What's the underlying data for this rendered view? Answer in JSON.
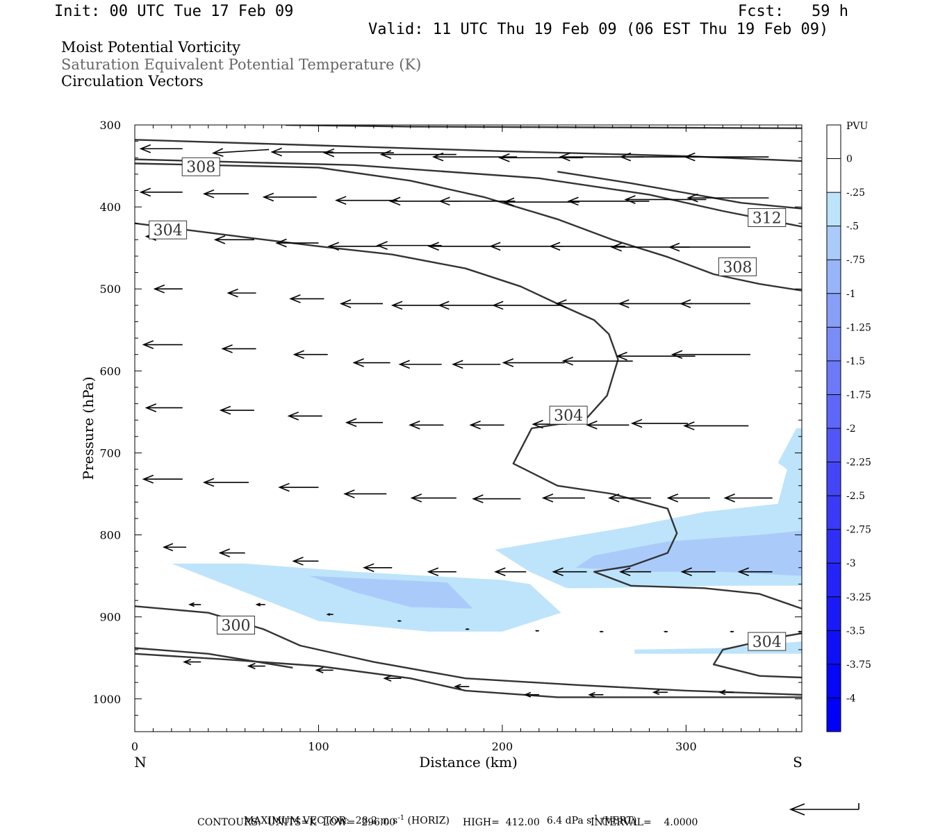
{
  "header": {
    "init": "Init: 00 UTC Tue 17 Feb 09",
    "fcst": "Fcst:   59 h",
    "valid": "Valid: 11 UTC Thu 19 Feb 09 (06 EST Thu 19 Feb 09)"
  },
  "titles": {
    "line1": "Moist Potential Vorticity",
    "line2": "Saturation Equivalent Potential Temperature (K)",
    "line3": "Circulation Vectors"
  },
  "colors": {
    "title2": "#666666",
    "contour": "#333333",
    "shade_0_25": "#bde4fb",
    "shade_0_5": "#aacbfa"
  },
  "footer": {
    "max_vector_label": "MAXIMUM VECTOR:",
    "max_horiz": "28.2 m s",
    "horiz_exp": "-1",
    "horiz_tag": "(HORIZ)",
    "max_vert": "6.4 dPa s",
    "vert_exp": "-1",
    "vert_tag": "(VERT)",
    "contours": "CONTOURS:  UNITS=K  LOW=  296.00",
    "high": "HIGH=  412.00",
    "interval": "INTERVAL=    4.0000"
  },
  "chart_data": {
    "type": "contour",
    "xlabel": "Distance (km)",
    "ylabel": "Pressure (hPa)",
    "x_start_label": "N",
    "x_end_label": "S",
    "xlim": [
      0,
      363
    ],
    "ylim": [
      300,
      1040
    ],
    "x_ticks": [
      "0",
      "100",
      "200",
      "300"
    ],
    "x_tick_values": [
      0,
      100,
      200,
      300
    ],
    "y_ticks": [
      "300",
      "400",
      "500",
      "600",
      "700",
      "800",
      "900",
      "1000"
    ],
    "y_tick_values": [
      300,
      400,
      500,
      600,
      700,
      800,
      900,
      1000
    ],
    "colorbar": {
      "unit": "PVU",
      "labels": [
        "0",
        "-.25",
        "-.5",
        "-.75",
        "-1",
        "-1.25",
        "-1.5",
        "-1.75",
        "-2",
        "-2.25",
        "-2.5",
        "-2.75",
        "-3",
        "-3.25",
        "-3.5",
        "-3.75",
        "-4"
      ],
      "values": [
        0,
        -0.25,
        -0.5,
        -0.75,
        -1,
        -1.25,
        -1.5,
        -1.75,
        -2,
        -2.25,
        -2.5,
        -2.75,
        -3,
        -3.25,
        -3.5,
        -3.75,
        -4
      ],
      "colors": [
        "#ffffff",
        "#ffffff",
        "#bde4fb",
        "#aacbfa",
        "#98b5f9",
        "#889ff8",
        "#7a8cf8",
        "#6c79f8",
        "#5f67f8",
        "#5256f8",
        "#4545f8",
        "#3a3af8",
        "#2f2ff8",
        "#2424f8",
        "#1a1af8",
        "#1010f8",
        "#0606f8",
        "#0000f8"
      ]
    },
    "contour_labels": [
      {
        "text": "308",
        "x": 36,
        "y": 351
      },
      {
        "text": "304",
        "x": 18,
        "y": 428
      },
      {
        "text": "312",
        "x": 344,
        "y": 413
      },
      {
        "text": "308",
        "x": 328,
        "y": 473
      },
      {
        "text": "304",
        "x": 236,
        "y": 654
      },
      {
        "text": "300",
        "x": 55,
        "y": 910
      },
      {
        "text": "304",
        "x": 344,
        "y": 930
      }
    ],
    "contours": [
      {
        "level": 312,
        "points": [
          [
            82,
            300
          ],
          [
            150,
            302
          ],
          [
            250,
            303
          ],
          [
            363,
            304
          ]
        ]
      },
      {
        "level": 312,
        "points": [
          [
            0,
            318
          ],
          [
            100,
            325
          ],
          [
            200,
            332
          ],
          [
            300,
            338
          ],
          [
            363,
            344
          ]
        ]
      },
      {
        "level": 312,
        "points": [
          [
            0,
            342
          ],
          [
            120,
            349
          ],
          [
            220,
            365
          ],
          [
            280,
            385
          ],
          [
            320,
            405
          ],
          [
            363,
            424
          ]
        ]
      },
      {
        "level": 308,
        "points": [
          [
            0,
            347
          ],
          [
            100,
            352
          ],
          [
            150,
            368
          ],
          [
            190,
            388
          ],
          [
            230,
            415
          ],
          [
            260,
            440
          ],
          [
            290,
            461
          ],
          [
            315,
            482
          ],
          [
            340,
            494
          ],
          [
            363,
            502
          ]
        ]
      },
      {
        "level": 308,
        "points": [
          [
            230,
            357
          ],
          [
            270,
            371
          ],
          [
            300,
            383
          ],
          [
            330,
            395
          ],
          [
            363,
            402
          ]
        ]
      },
      {
        "level": 304,
        "points": [
          [
            0,
            420
          ],
          [
            60,
            437
          ],
          [
            100,
            448
          ],
          [
            140,
            458
          ],
          [
            180,
            475
          ],
          [
            210,
            497
          ],
          [
            230,
            518
          ],
          [
            250,
            538
          ],
          [
            258,
            555
          ],
          [
            263,
            586
          ],
          [
            257,
            630
          ],
          [
            245,
            660
          ],
          [
            216,
            670
          ],
          [
            206,
            713
          ],
          [
            230,
            740
          ],
          [
            260,
            750
          ],
          [
            290,
            768
          ],
          [
            295,
            798
          ],
          [
            290,
            822
          ],
          [
            270,
            838
          ],
          [
            250,
            845
          ],
          [
            270,
            862
          ],
          [
            310,
            865
          ],
          [
            340,
            872
          ],
          [
            363,
            890
          ]
        ]
      },
      {
        "level": 304,
        "points": [
          [
            363,
            920
          ],
          [
            350,
            925
          ],
          [
            320,
            940
          ],
          [
            315,
            958
          ],
          [
            340,
            972
          ],
          [
            363,
            974
          ]
        ]
      },
      {
        "level": 300,
        "points": [
          [
            0,
            887
          ],
          [
            40,
            895
          ],
          [
            70,
            915
          ],
          [
            90,
            935
          ],
          [
            130,
            955
          ],
          [
            180,
            975
          ],
          [
            240,
            983
          ],
          [
            300,
            990
          ],
          [
            363,
            995
          ]
        ]
      },
      {
        "level": 300,
        "points": [
          [
            0,
            938
          ],
          [
            40,
            945
          ],
          [
            86,
            962
          ]
        ]
      },
      {
        "level": 300,
        "points": [
          [
            0,
            945
          ],
          [
            50,
            952
          ],
          [
            100,
            960
          ],
          [
            150,
            975
          ],
          [
            180,
            990
          ],
          [
            230,
            998
          ],
          [
            300,
            998
          ],
          [
            363,
            998
          ]
        ]
      }
    ],
    "shaded_regions": [
      {
        "level": "-.25",
        "points": [
          [
            20,
            835
          ],
          [
            60,
            835
          ],
          [
            120,
            845
          ],
          [
            200,
            855
          ],
          [
            215,
            860
          ],
          [
            232,
            895
          ],
          [
            200,
            918
          ],
          [
            160,
            918
          ],
          [
            100,
            905
          ],
          [
            60,
            870
          ]
        ]
      },
      {
        "level": "-.5",
        "points": [
          [
            95,
            850
          ],
          [
            170,
            858
          ],
          [
            184,
            890
          ],
          [
            150,
            888
          ],
          [
            120,
            870
          ]
        ]
      },
      {
        "level": "-.25",
        "points": [
          [
            196,
            818
          ],
          [
            230,
            805
          ],
          [
            270,
            790
          ],
          [
            310,
            772
          ],
          [
            350,
            762
          ],
          [
            355,
            720
          ],
          [
            350,
            712
          ],
          [
            360,
            670
          ],
          [
            363,
            670
          ],
          [
            363,
            862
          ],
          [
            320,
            862
          ],
          [
            250,
            865
          ],
          [
            235,
            865
          ],
          [
            215,
            845
          ]
        ]
      },
      {
        "level": "-.5",
        "points": [
          [
            240,
            840
          ],
          [
            250,
            825
          ],
          [
            290,
            808
          ],
          [
            340,
            800
          ],
          [
            363,
            795
          ],
          [
            363,
            850
          ],
          [
            320,
            845
          ],
          [
            280,
            845
          ]
        ]
      },
      {
        "level": "-.25",
        "points": [
          [
            272,
            940
          ],
          [
            320,
            938
          ],
          [
            363,
            930
          ],
          [
            363,
            945
          ],
          [
            310,
            945
          ],
          [
            272,
            945
          ]
        ]
      }
    ],
    "max_vector_ms": 28.2,
    "vectors": [
      [
        26,
        329,
        -15,
        0
      ],
      [
        73,
        330,
        -20,
        1
      ],
      [
        108,
        333,
        -22,
        0
      ],
      [
        141,
        334,
        -25,
        0
      ],
      [
        175,
        336,
        -27,
        0
      ],
      [
        208,
        339,
        -30,
        0
      ],
      [
        244,
        340,
        -30,
        0
      ],
      [
        277,
        339,
        -30,
        0
      ],
      [
        310,
        339,
        -30,
        0
      ],
      [
        345,
        339,
        -30,
        0
      ],
      [
        26,
        382,
        -15,
        0
      ],
      [
        62,
        384,
        -16,
        0
      ],
      [
        99,
        388,
        -19,
        0
      ],
      [
        143,
        392,
        -22,
        0
      ],
      [
        177,
        393,
        -25,
        0
      ],
      [
        207,
        393,
        -27,
        0
      ],
      [
        242,
        394,
        -27,
        0
      ],
      [
        280,
        393,
        -29,
        0
      ],
      [
        311,
        391,
        -29,
        0
      ],
      [
        345,
        389,
        -29,
        0
      ],
      [
        26,
        436,
        -13,
        0
      ],
      [
        65,
        440,
        -14,
        0
      ],
      [
        100,
        444,
        -15,
        0
      ],
      [
        133,
        448,
        -18,
        0
      ],
      [
        167,
        447,
        -23,
        0
      ],
      [
        198,
        448,
        -25,
        0
      ],
      [
        233,
        448,
        -26,
        0
      ],
      [
        267,
        448,
        -27,
        0
      ],
      [
        302,
        449,
        -28,
        0
      ],
      [
        335,
        449,
        -29,
        0
      ],
      [
        26,
        500,
        -10,
        0
      ],
      [
        66,
        505,
        -10,
        0
      ],
      [
        103,
        512,
        -12,
        0
      ],
      [
        135,
        518,
        -15,
        0
      ],
      [
        166,
        520,
        -17,
        0
      ],
      [
        199,
        520,
        -22,
        0
      ],
      [
        233,
        520,
        -25,
        0
      ],
      [
        269,
        518,
        -26,
        0
      ],
      [
        303,
        518,
        -26,
        0
      ],
      [
        335,
        518,
        -25,
        0
      ],
      [
        26,
        568,
        -14,
        0
      ],
      [
        66,
        573,
        -12,
        0
      ],
      [
        105,
        580,
        -12,
        0
      ],
      [
        139,
        590,
        -13,
        0
      ],
      [
        167,
        592,
        -15,
        0
      ],
      [
        199,
        592,
        -17,
        0
      ],
      [
        234,
        590,
        -22,
        0
      ],
      [
        271,
        588,
        -25,
        0
      ],
      [
        305,
        582,
        -28,
        0
      ],
      [
        335,
        580,
        -28,
        0
      ],
      [
        26,
        645,
        -13,
        0
      ],
      [
        65,
        648,
        -12,
        0
      ],
      [
        102,
        655,
        -12,
        0
      ],
      [
        135,
        663,
        -13,
        0
      ],
      [
        168,
        666,
        -12,
        0
      ],
      [
        201,
        666,
        -12,
        0
      ],
      [
        235,
        665,
        -12,
        0
      ],
      [
        269,
        666,
        -15,
        0
      ],
      [
        301,
        664,
        -20,
        0
      ],
      [
        334,
        667,
        -23,
        0
      ],
      [
        26,
        732,
        -14,
        0
      ],
      [
        62,
        736,
        -16,
        0
      ],
      [
        100,
        742,
        -14,
        0
      ],
      [
        137,
        750,
        -15,
        0
      ],
      [
        175,
        755,
        -16,
        0
      ],
      [
        210,
        756,
        -17,
        0
      ],
      [
        245,
        755,
        -15,
        0
      ],
      [
        281,
        755,
        -15,
        0
      ],
      [
        313,
        755,
        -15,
        0
      ],
      [
        347,
        755,
        -17,
        0
      ],
      [
        28,
        815,
        -8,
        0
      ],
      [
        60,
        822,
        -9,
        0
      ],
      [
        100,
        832,
        -9,
        0
      ],
      [
        140,
        840,
        -10,
        0
      ],
      [
        175,
        845,
        -10,
        0
      ],
      [
        213,
        845,
        -11,
        0
      ],
      [
        246,
        845,
        -12,
        0
      ],
      [
        281,
        845,
        -11,
        0
      ],
      [
        316,
        845,
        -12,
        0
      ],
      [
        347,
        845,
        -12,
        0
      ],
      [
        36,
        885,
        -4,
        0
      ],
      [
        71,
        885,
        -3,
        0
      ],
      [
        108,
        897,
        -2,
        0
      ],
      [
        145,
        905,
        -1,
        0
      ],
      [
        182,
        915,
        -1,
        0
      ],
      [
        220,
        917,
        -1,
        0
      ],
      [
        255,
        918,
        -1,
        0
      ],
      [
        290,
        918,
        -1,
        0
      ],
      [
        326,
        918,
        -1,
        0
      ],
      [
        363,
        918,
        -1,
        0
      ],
      [
        36,
        955,
        -6,
        0
      ],
      [
        71,
        960,
        -6,
        0
      ],
      [
        108,
        965,
        -6,
        0
      ],
      [
        145,
        975,
        -6,
        0
      ],
      [
        182,
        985,
        -5,
        0
      ],
      [
        220,
        995,
        -5,
        0
      ],
      [
        255,
        995,
        -5,
        0
      ],
      [
        290,
        992,
        -5,
        0
      ],
      [
        326,
        992,
        -5,
        0
      ]
    ]
  }
}
